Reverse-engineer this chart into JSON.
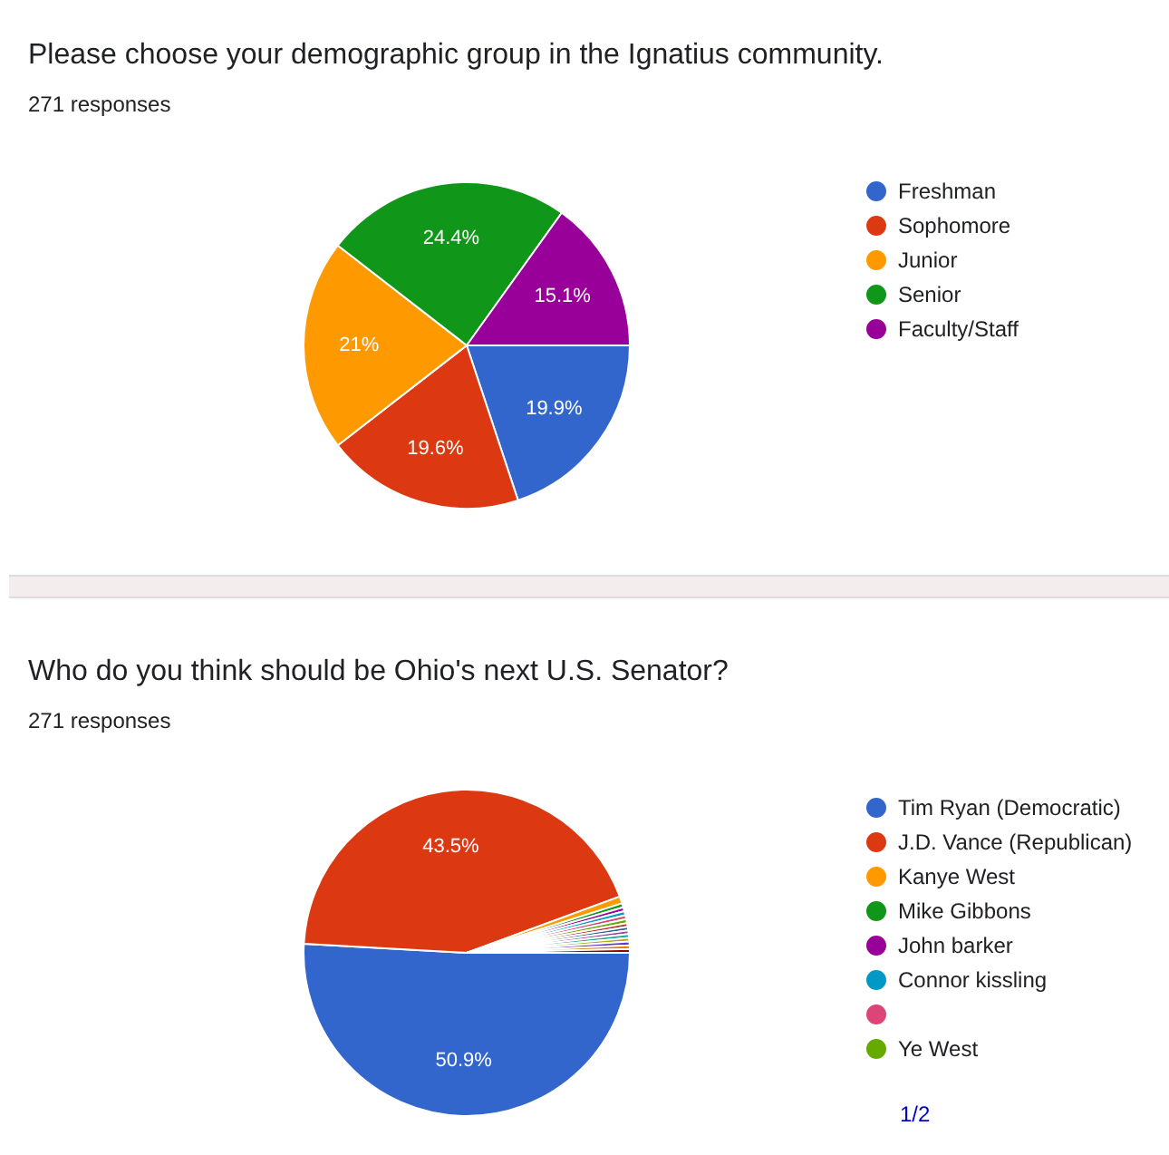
{
  "chart_data": [
    {
      "type": "pie",
      "title": "Please choose your demographic group in the Ignatius community.",
      "subtitle": "271 responses",
      "categories": [
        "Freshman",
        "Sophomore",
        "Junior",
        "Senior",
        "Faculty/Staff"
      ],
      "values": [
        19.9,
        19.6,
        21,
        24.4,
        15.1
      ],
      "colors": [
        "#3366cc",
        "#dc3912",
        "#ff9900",
        "#109618",
        "#990099"
      ],
      "value_labels": [
        "19.9%",
        "19.6%",
        "21%",
        "24.4%",
        "15.1%"
      ],
      "legend": "right"
    },
    {
      "type": "pie",
      "title": "Who do you think should be Ohio's next U.S. Senator?",
      "subtitle": "271 responses",
      "categories": [
        "Tim Ryan (Democratic)",
        "J.D. Vance (Republican)",
        "Kanye West",
        "Mike Gibbons",
        "John barker",
        "Connor kissling",
        null,
        "Ye West",
        null,
        null,
        null,
        null,
        null,
        null,
        null,
        null
      ],
      "values": [
        50.9,
        43.5,
        0.7,
        0.4,
        0.4,
        0.4,
        0.4,
        0.4,
        0.36,
        0.36,
        0.36,
        0.36,
        0.36,
        0.37,
        0.37,
        0.37
      ],
      "colors": [
        "#3366cc",
        "#dc3912",
        "#ff9900",
        "#109618",
        "#990099",
        "#0099c6",
        "#dd4477",
        "#66aa00",
        "#b82e2e",
        "#316395",
        "#994499",
        "#22aa99",
        "#aaaa11",
        "#6633cc",
        "#e67300",
        "#8b0707"
      ],
      "value_labels": [
        "50.9%",
        "43.5%",
        null,
        null,
        null,
        null,
        null,
        null,
        null,
        null,
        null,
        null,
        null,
        null,
        null,
        null
      ],
      "legend": "right",
      "annotations": [
        "1/2"
      ]
    }
  ]
}
